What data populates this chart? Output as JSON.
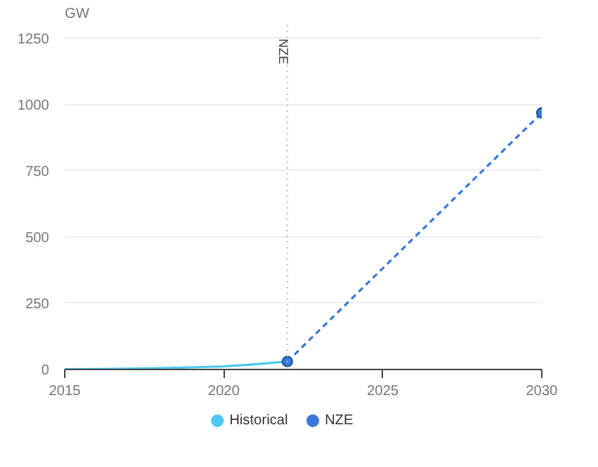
{
  "chart_data": {
    "type": "line",
    "ylabel": "GW",
    "xlim": [
      2015,
      2030
    ],
    "ylim": [
      0,
      1300
    ],
    "xticks": [
      2015,
      2020,
      2025,
      2030
    ],
    "yticks": [
      0,
      250,
      500,
      750,
      1000,
      1250
    ],
    "grid": "y",
    "legend": "bottom",
    "series": [
      {
        "name": "Historical",
        "color": "#4cc9f0",
        "x": [
          2015,
          2016,
          2017,
          2018,
          2019,
          2020,
          2021,
          2022
        ],
        "values": [
          1,
          2,
          3,
          5,
          8,
          12,
          20,
          30
        ],
        "line_style": "solid"
      },
      {
        "name": "NZE",
        "color": "#3a78d8",
        "x": [
          2022,
          2030
        ],
        "values": [
          30,
          968
        ],
        "line_style": "dashed",
        "marker": "circle"
      }
    ],
    "ref_lines": [
      {
        "axis": "x",
        "value": 2022,
        "label": "NZE",
        "color": "#bbbbbb",
        "line_style": "dotted"
      }
    ]
  }
}
